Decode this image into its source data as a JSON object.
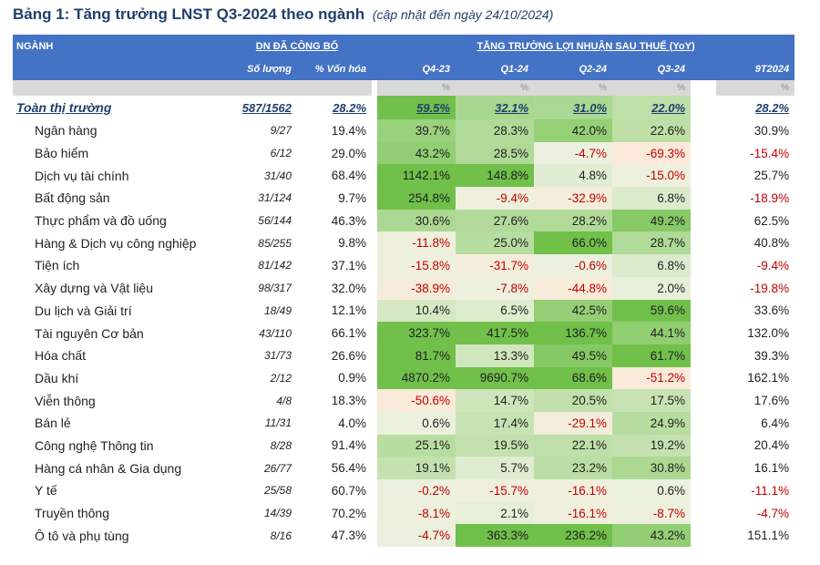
{
  "title": "Bảng 1: Tăng trưởng LNST Q3-2024 theo ngành",
  "subtitle": "(cập nhật đến ngày 24/10/2024)",
  "headers": {
    "sector": "NGÀNH",
    "dn_group": "DN ĐÃ CÔNG BỐ",
    "growth_group": "TĂNG TRƯỞNG LỢI NHUẬN SAU THUẾ (YoY)",
    "count": "Số lượng",
    "cap": "% Vốn hóa",
    "periods": [
      "Q4-23",
      "Q1-24",
      "Q2-24",
      "Q3-24",
      "9T2024"
    ],
    "unit": "%"
  },
  "total": {
    "name": "Toàn thị trường",
    "count": "587/1562",
    "cap": "28.2%",
    "values": [
      "59.5%",
      "32.1%",
      "31.0%",
      "22.0%",
      "28.2%"
    ]
  },
  "rows": [
    {
      "name": "Ngân hàng",
      "count": "9/27",
      "cap": "19.4%",
      "values": [
        "39.7%",
        "28.3%",
        "42.0%",
        "22.6%",
        "30.9%"
      ]
    },
    {
      "name": "Bảo hiểm",
      "count": "6/12",
      "cap": "29.0%",
      "values": [
        "43.2%",
        "28.5%",
        "-4.7%",
        "-69.3%",
        "-15.4%"
      ]
    },
    {
      "name": "Dịch vụ tài chính",
      "count": "31/40",
      "cap": "68.4%",
      "values": [
        "1142.1%",
        "148.8%",
        "4.8%",
        "-15.0%",
        "25.7%"
      ]
    },
    {
      "name": "Bất động sản",
      "count": "31/124",
      "cap": "9.7%",
      "values": [
        "254.8%",
        "-9.4%",
        "-32.9%",
        "6.8%",
        "-18.9%"
      ]
    },
    {
      "name": "Thực phẩm và đồ uống",
      "count": "56/144",
      "cap": "46.3%",
      "values": [
        "30.6%",
        "27.6%",
        "28.2%",
        "49.2%",
        "62.5%"
      ]
    },
    {
      "name": "Hàng & Dịch vụ công nghiệp",
      "count": "85/255",
      "cap": "9.8%",
      "values": [
        "-11.8%",
        "25.0%",
        "66.0%",
        "28.7%",
        "40.8%"
      ]
    },
    {
      "name": "Tiện ích",
      "count": "81/142",
      "cap": "37.1%",
      "values": [
        "-15.8%",
        "-31.7%",
        "-0.6%",
        "6.8%",
        "-9.4%"
      ]
    },
    {
      "name": "Xây dựng và Vật liệu",
      "count": "98/317",
      "cap": "32.0%",
      "values": [
        "-38.9%",
        "-7.8%",
        "-44.8%",
        "2.0%",
        "-19.8%"
      ]
    },
    {
      "name": "Du lịch và Giải trí",
      "count": "18/49",
      "cap": "12.1%",
      "values": [
        "10.4%",
        "6.5%",
        "42.5%",
        "59.6%",
        "33.6%"
      ]
    },
    {
      "name": "Tài nguyên Cơ bản",
      "count": "43/110",
      "cap": "66.1%",
      "values": [
        "323.7%",
        "417.5%",
        "136.7%",
        "44.1%",
        "132.0%"
      ]
    },
    {
      "name": "Hóa chất",
      "count": "31/73",
      "cap": "26.6%",
      "values": [
        "81.7%",
        "13.3%",
        "49.5%",
        "61.7%",
        "39.3%"
      ]
    },
    {
      "name": "Dầu khí",
      "count": "2/12",
      "cap": "0.9%",
      "values": [
        "4870.2%",
        "9690.7%",
        "68.6%",
        "-51.2%",
        "162.1%"
      ]
    },
    {
      "name": "Viễn thông",
      "count": "4/8",
      "cap": "18.3%",
      "values": [
        "-50.6%",
        "14.7%",
        "20.5%",
        "17.5%",
        "17.6%"
      ]
    },
    {
      "name": "Bán lẻ",
      "count": "11/31",
      "cap": "4.0%",
      "values": [
        "0.6%",
        "17.4%",
        "-29.1%",
        "24.9%",
        "6.4%"
      ]
    },
    {
      "name": "Công nghệ Thông tin",
      "count": "8/28",
      "cap": "91.4%",
      "values": [
        "25.1%",
        "19.5%",
        "22.1%",
        "19.2%",
        "20.4%"
      ]
    },
    {
      "name": "Hàng cá nhân & Gia dụng",
      "count": "26/77",
      "cap": "56.4%",
      "values": [
        "19.1%",
        "5.7%",
        "23.2%",
        "30.8%",
        "16.1%"
      ]
    },
    {
      "name": "Y tế",
      "count": "25/58",
      "cap": "60.7%",
      "values": [
        "-0.2%",
        "-15.7%",
        "-16.1%",
        "0.6%",
        "-11.1%"
      ]
    },
    {
      "name": "Truyền thông",
      "count": "14/39",
      "cap": "70.2%",
      "values": [
        "-8.1%",
        "2.1%",
        "-16.1%",
        "-8.7%",
        "-4.7%"
      ]
    },
    {
      "name": "Ô tô và phụ tùng",
      "count": "8/16",
      "cap": "47.3%",
      "values": [
        "-4.7%",
        "363.3%",
        "236.2%",
        "43.2%",
        "151.1%"
      ]
    }
  ]
}
